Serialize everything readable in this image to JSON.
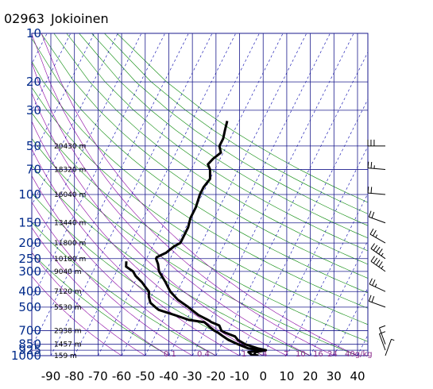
{
  "chart_data": {
    "type": "line",
    "diagram": "skew-T log-P (aerological sounding)",
    "station_id": "02963",
    "station_name": "Jokioinen",
    "pressure_ticks": [
      10,
      20,
      30,
      50,
      70,
      100,
      150,
      200,
      250,
      300,
      400,
      500,
      700,
      850,
      925,
      1000
    ],
    "temperature_ticks": [
      -90,
      -80,
      -70,
      -60,
      -50,
      -40,
      -30,
      -20,
      -10,
      0,
      10,
      20,
      30,
      40
    ],
    "pressure_range": [
      10,
      1000
    ],
    "temperature_range_at_bottom": [
      -90,
      45
    ],
    "pressure_scale": "log",
    "height_labels": [
      {
        "p": 50,
        "text": "20430 m"
      },
      {
        "p": 70,
        "text": "18320 m"
      },
      {
        "p": 100,
        "text": "16040 m"
      },
      {
        "p": 150,
        "text": "13440 m"
      },
      {
        "p": 200,
        "text": "11800 m"
      },
      {
        "p": 250,
        "text": "10180 m"
      },
      {
        "p": 300,
        "text": "9040 m"
      },
      {
        "p": 400,
        "text": "7120 m"
      },
      {
        "p": 500,
        "text": "5530 m"
      },
      {
        "p": 700,
        "text": "2938 m"
      },
      {
        "p": 850,
        "text": "1457 m"
      },
      {
        "p": 1000,
        "text": "159 m"
      }
    ],
    "mixing_ratio_labels": [
      "0.1",
      "0.4",
      "1",
      "4",
      "7",
      "10",
      "16",
      "24",
      "40g/kg"
    ],
    "series": [
      {
        "name": "",
        "kind": "temperature",
        "p": [
          1000,
          990,
          950,
          925,
          900,
          850,
          800,
          760,
          720,
          700,
          650,
          620,
          600,
          560,
          520,
          500,
          450,
          400,
          350,
          300,
          270,
          250,
          245,
          230,
          210,
          200,
          180,
          160,
          140,
          120,
          100,
          90,
          80,
          70,
          65,
          60,
          55,
          50,
          45,
          40,
          35
        ],
        "t": [
          -2,
          -4,
          -4,
          0,
          -4,
          -10,
          -14,
          -16,
          -21,
          -23,
          -25,
          -29,
          -31,
          -36,
          -40,
          -42,
          -48,
          -53,
          -57,
          -62,
          -64,
          -66,
          -66,
          -63,
          -61,
          -59,
          -59,
          -59,
          -60,
          -60,
          -61,
          -61,
          -60,
          -62,
          -64,
          -63,
          -61,
          -63,
          -63,
          -64,
          -65
        ]
      },
      {
        "name": "",
        "kind": "dewpoint",
        "p": [
          1000,
          990,
          950,
          925,
          900,
          850,
          800,
          760,
          720,
          700,
          660,
          620,
          600,
          560,
          520,
          500,
          470,
          430,
          400,
          380,
          350,
          320,
          300,
          280,
          260
        ],
        "t": [
          -2,
          -5,
          -7,
          -1,
          -8,
          -13,
          -18,
          -21,
          -24,
          -26,
          -29,
          -32,
          -39,
          -46,
          -54,
          -56,
          -59,
          -61,
          -62,
          -64,
          -67,
          -71,
          -73,
          -77,
          -78
        ]
      }
    ],
    "wind_barbs": [
      {
        "p": 50,
        "dir": 90,
        "kt": 30
      },
      {
        "p": 70,
        "dir": 95,
        "kt": 25
      },
      {
        "p": 100,
        "dir": 95,
        "kt": 20
      },
      {
        "p": 150,
        "dir": 110,
        "kt": 20
      },
      {
        "p": 200,
        "dir": 120,
        "kt": 25
      },
      {
        "p": 250,
        "dir": 125,
        "kt": 45
      },
      {
        "p": 300,
        "dir": 125,
        "kt": 45
      },
      {
        "p": 400,
        "dir": 115,
        "kt": 25
      },
      {
        "p": 500,
        "dir": 110,
        "kt": 20
      },
      {
        "p": 850,
        "dir": 160,
        "kt": 10
      },
      {
        "p": 925,
        "dir": 160,
        "kt": 10
      },
      {
        "p": 1000,
        "dir": 200,
        "kt": 5
      }
    ],
    "colors": {
      "grid": "#1a1a8c",
      "pressure_tick_text": "#002a8a",
      "temp_lines": "#0000aa",
      "dry_adiabat": "#0a8a0a",
      "moist_adiabat": "#8a00a0",
      "mixing_ratio": "#8a00a0",
      "profile": "#000000"
    }
  }
}
